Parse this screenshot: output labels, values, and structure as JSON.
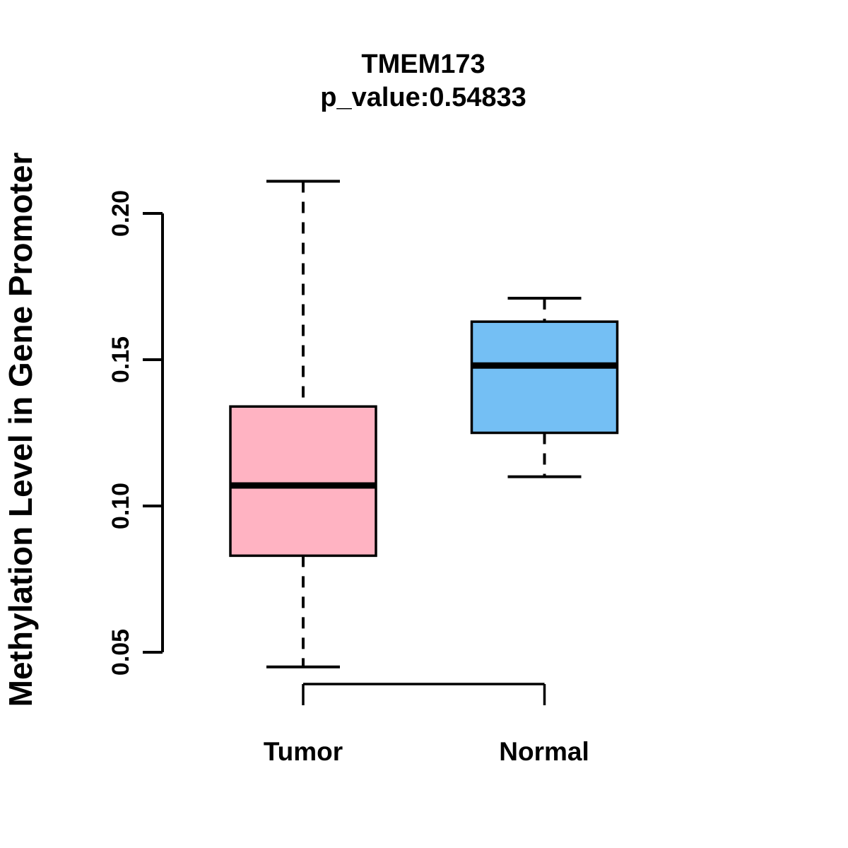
{
  "figure": {
    "background": "#ffffff"
  },
  "chart_data": {
    "type": "boxplot",
    "title": "TMEM173",
    "subtitle": "p_value:0.54833",
    "gene": "TMEM173",
    "p_value": 0.54833,
    "ylabel": "Methylation Level in Gene Promoter",
    "xlabel": "",
    "categories": [
      "Tumor",
      "Normal"
    ],
    "series": [
      {
        "name": "Tumor",
        "color": "#FFB3C2",
        "min": 0.045,
        "q1": 0.083,
        "median": 0.107,
        "q3": 0.134,
        "max": 0.211
      },
      {
        "name": "Normal",
        "color": "#74BFF4",
        "min": 0.11,
        "q1": 0.125,
        "median": 0.148,
        "q3": 0.163,
        "max": 0.171
      }
    ],
    "yticks": [
      0.05,
      0.1,
      0.15,
      0.2
    ],
    "ytick_labels": [
      "0.05",
      "0.10",
      "0.15",
      "0.20"
    ],
    "ylim": [
      0.045,
      0.212
    ],
    "grid": false,
    "legend": "none",
    "whisker_style": "dashed",
    "line_color": "#000000"
  }
}
